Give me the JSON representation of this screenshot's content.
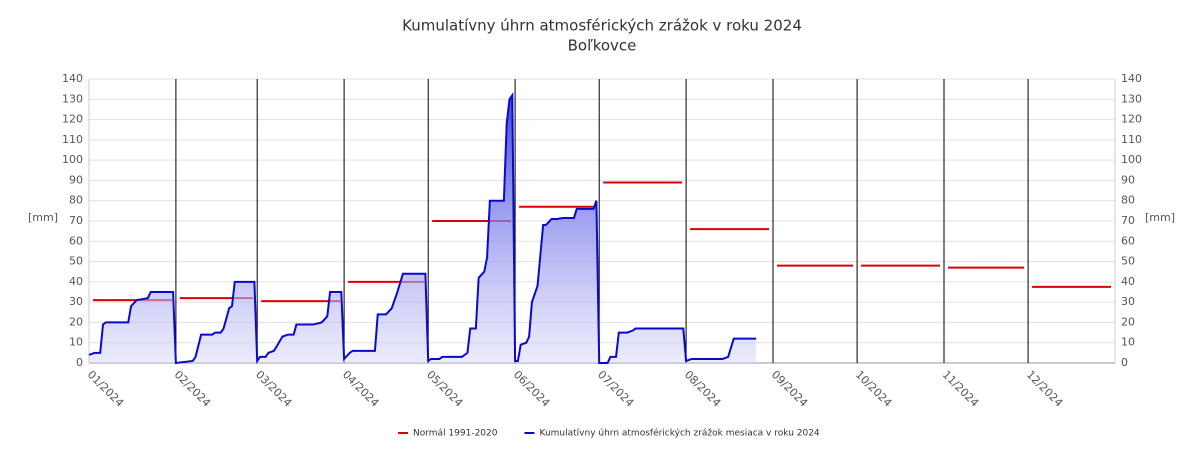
{
  "chart_data": {
    "type": "line",
    "title": "Kumulatívny úhrn atmosférických zrážok v roku 2024",
    "subtitle": "Boľkovce",
    "ylabel": "[mm]",
    "xlim": [
      1,
      367
    ],
    "xticks": [
      {
        "value": 1,
        "label": "01/2024"
      },
      {
        "value": 32,
        "label": "02/2024"
      },
      {
        "value": 61,
        "label": "03/2024"
      },
      {
        "value": 92,
        "label": "04/2024"
      },
      {
        "value": 122,
        "label": "05/2024"
      },
      {
        "value": 153,
        "label": "06/2024"
      },
      {
        "value": 183,
        "label": "07/2024"
      },
      {
        "value": 214,
        "label": "08/2024"
      },
      {
        "value": 245,
        "label": "09/2024"
      },
      {
        "value": 275,
        "label": "10/2024"
      },
      {
        "value": 306,
        "label": "11/2024"
      },
      {
        "value": 336,
        "label": "12/2024"
      }
    ],
    "ylim": [
      0,
      140
    ],
    "yticks": [
      0,
      10,
      20,
      30,
      40,
      50,
      60,
      70,
      80,
      90,
      100,
      110,
      120,
      130,
      140
    ],
    "grid": true,
    "series": [
      {
        "name": "Normál 1991-2020",
        "color": "#dd0000",
        "monthly": true,
        "values": [
          31,
          32,
          30.5,
          40,
          70,
          77,
          89,
          66,
          48,
          48,
          47,
          37.5
        ]
      },
      {
        "name": "Kumulatívny úhrn atmosférických zrážok mesiaca v roku 2024",
        "color": "#0a0acc",
        "fill": true,
        "x": [
          1,
          3,
          5,
          6,
          7,
          15,
          16,
          18,
          22,
          23,
          31,
          32,
          38,
          39,
          41,
          45,
          46,
          48,
          49,
          51,
          52,
          53,
          60,
          61,
          62,
          64,
          65,
          67,
          70,
          72,
          74,
          75,
          81,
          84,
          86,
          87,
          91,
          92,
          94,
          95,
          103,
          104,
          107,
          109,
          111,
          113,
          115,
          121,
          122,
          123,
          126,
          127,
          134,
          136,
          137,
          139,
          140,
          142,
          143,
          144,
          149,
          150,
          151,
          152,
          153,
          154,
          155,
          157,
          158,
          159,
          161,
          163,
          164,
          166,
          168,
          170,
          174,
          175,
          181,
          182,
          183,
          186,
          187,
          189,
          190,
          193,
          195,
          196,
          213,
          214,
          216,
          227,
          229,
          231,
          239
        ],
        "values": [
          4,
          5,
          5,
          19,
          20,
          20,
          28,
          31,
          32,
          35,
          35,
          0,
          1,
          3,
          14,
          14,
          15,
          15,
          17,
          27,
          28,
          40,
          40,
          1,
          3,
          3,
          5,
          6,
          13,
          14,
          14,
          19,
          19,
          20,
          23,
          35,
          35,
          2,
          5,
          6,
          6,
          24,
          24,
          27,
          35,
          44,
          44,
          44,
          1,
          2,
          2,
          3,
          3,
          5,
          17,
          17,
          42,
          45,
          52,
          80,
          80,
          118,
          130,
          132,
          1,
          1,
          9,
          10,
          13,
          30,
          38,
          68,
          68,
          71,
          71,
          71.5,
          71.5,
          76,
          76,
          80,
          0,
          0,
          3,
          3,
          15,
          15,
          16,
          17,
          17,
          1,
          2,
          2,
          3,
          12,
          12
        ]
      }
    ]
  }
}
